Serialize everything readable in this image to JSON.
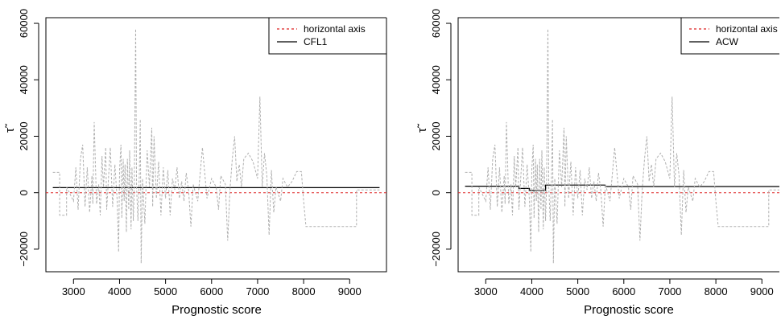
{
  "chart_data": [
    {
      "type": "line",
      "xlabel": "Prognostic score",
      "ylabel": "τ̃",
      "xlim": [
        2400,
        9800
      ],
      "ylim": [
        -28000,
        62000
      ],
      "x_ticks": [
        3000,
        4000,
        5000,
        6000,
        7000,
        8000,
        9000
      ],
      "y_ticks": [
        -20000,
        0,
        20000,
        40000,
        60000
      ],
      "legend": {
        "position": "top-right",
        "entries": [
          "horizontal axis",
          "CFL1"
        ]
      },
      "series": [
        {
          "name": "horizontal axis",
          "style": "dashed",
          "color": "#dd2222",
          "points": [
            [
              2400,
              0
            ],
            [
              9800,
              0
            ]
          ]
        },
        {
          "name": "CFL1",
          "style": "solid",
          "color": "#000000",
          "points": [
            [
              2550,
              1800
            ],
            [
              9650,
              1800
            ]
          ]
        },
        {
          "style": "dashed",
          "color": "#b0b0b0",
          "points": [
            [
              2550,
              7200
            ],
            [
              2700,
              7200
            ],
            [
              2700,
              -8000
            ],
            [
              2850,
              -8000
            ],
            [
              2850,
              2000
            ],
            [
              3000,
              -3000
            ],
            [
              3050,
              9000
            ],
            [
              3100,
              -6000
            ],
            [
              3150,
              12000
            ],
            [
              3200,
              17000
            ],
            [
              3250,
              -5000
            ],
            [
              3300,
              9000
            ],
            [
              3350,
              -7000
            ],
            [
              3400,
              6000
            ],
            [
              3420,
              -4000
            ],
            [
              3450,
              25000
            ],
            [
              3500,
              -4000
            ],
            [
              3550,
              3000
            ],
            [
              3580,
              -8000
            ],
            [
              3620,
              13000
            ],
            [
              3650,
              2000
            ],
            [
              3700,
              16000
            ],
            [
              3720,
              -6000
            ],
            [
              3760,
              5000
            ],
            [
              3800,
              16000
            ],
            [
              3850,
              -5000
            ],
            [
              3900,
              10000
            ],
            [
              3950,
              -3000
            ],
            [
              3980,
              -21000
            ],
            [
              4000,
              8000
            ],
            [
              4030,
              17000
            ],
            [
              4050,
              -9000
            ],
            [
              4080,
              12000
            ],
            [
              4100,
              -3000
            ],
            [
              4120,
              10000
            ],
            [
              4150,
              -14000
            ],
            [
              4170,
              12000
            ],
            [
              4200,
              -6000
            ],
            [
              4220,
              15000
            ],
            [
              4250,
              -13000
            ],
            [
              4270,
              9000
            ],
            [
              4300,
              -10000
            ],
            [
              4320,
              2000
            ],
            [
              4350,
              58000
            ],
            [
              4370,
              2000
            ],
            [
              4400,
              -10000
            ],
            [
              4430,
              6000
            ],
            [
              4450,
              26000
            ],
            [
              4470,
              -25000
            ],
            [
              4500,
              5000
            ],
            [
              4550,
              -11000
            ],
            [
              4600,
              15000
            ],
            [
              4650,
              2000
            ],
            [
              4700,
              23000
            ],
            [
              4720,
              -5000
            ],
            [
              4750,
              20000
            ],
            [
              4800,
              -2000
            ],
            [
              4850,
              11000
            ],
            [
              4900,
              -8000
            ],
            [
              4950,
              9000
            ],
            [
              5000,
              -2000
            ],
            [
              5050,
              8000
            ],
            [
              5100,
              -8000
            ],
            [
              5150,
              5000
            ],
            [
              5200,
              1000
            ],
            [
              5250,
              9000
            ],
            [
              5300,
              -2000
            ],
            [
              5350,
              4000
            ],
            [
              5400,
              -3000
            ],
            [
              5450,
              7000
            ],
            [
              5500,
              1000
            ],
            [
              5550,
              -12000
            ],
            [
              5600,
              3000
            ],
            [
              5700,
              -3000
            ],
            [
              5800,
              16000
            ],
            [
              5900,
              -2000
            ],
            [
              6000,
              5000
            ],
            [
              6100,
              2000
            ],
            [
              6150,
              -6000
            ],
            [
              6200,
              6000
            ],
            [
              6300,
              3000
            ],
            [
              6350,
              -17000
            ],
            [
              6400,
              1000
            ],
            [
              6450,
              12000
            ],
            [
              6500,
              20000
            ],
            [
              6550,
              4000
            ],
            [
              6600,
              10000
            ],
            [
              6650,
              2000
            ],
            [
              6700,
              12000
            ],
            [
              6800,
              14000
            ],
            [
              6900,
              11000
            ],
            [
              7000,
              5000
            ],
            [
              7050,
              34000
            ],
            [
              7100,
              2000
            ],
            [
              7150,
              14000
            ],
            [
              7200,
              6000
            ],
            [
              7250,
              -15000
            ],
            [
              7300,
              8000
            ],
            [
              7350,
              -7000
            ],
            [
              7400,
              2000
            ],
            [
              7500,
              -3000
            ],
            [
              7550,
              5000
            ],
            [
              7650,
              2000
            ],
            [
              7750,
              4000
            ],
            [
              7850,
              7500
            ],
            [
              7950,
              7500
            ],
            [
              8000,
              -3000
            ],
            [
              8050,
              -12000
            ],
            [
              9150,
              -12000
            ],
            [
              9150,
              1000
            ],
            [
              9650,
              1000
            ]
          ]
        }
      ]
    },
    {
      "type": "line",
      "xlabel": "Prognostic score",
      "ylabel": "τ̃",
      "xlim": [
        2400,
        9800
      ],
      "ylim": [
        -28000,
        62000
      ],
      "x_ticks": [
        3000,
        4000,
        5000,
        6000,
        7000,
        8000,
        9000
      ],
      "y_ticks": [
        -20000,
        0,
        20000,
        40000,
        60000
      ],
      "legend": {
        "position": "top-right",
        "entries": [
          "horizontal axis",
          "ACW"
        ]
      },
      "series": [
        {
          "name": "horizontal axis",
          "style": "dashed",
          "color": "#dd2222",
          "points": [
            [
              2400,
              0
            ],
            [
              9800,
              0
            ]
          ]
        },
        {
          "name": "ACW",
          "style": "solid",
          "color": "#000000",
          "points": [
            [
              2550,
              2300
            ],
            [
              3720,
              2300
            ],
            [
              3720,
              1500
            ],
            [
              3950,
              1500
            ],
            [
              3950,
              800
            ],
            [
              4300,
              800
            ],
            [
              4300,
              2700
            ],
            [
              5600,
              2700
            ],
            [
              5600,
              2200
            ],
            [
              9650,
              2200
            ]
          ]
        },
        {
          "style": "dashed",
          "color": "#b0b0b0",
          "points": [
            [
              2550,
              7200
            ],
            [
              2700,
              7200
            ],
            [
              2700,
              -8000
            ],
            [
              2850,
              -8000
            ],
            [
              2850,
              2000
            ],
            [
              3000,
              -3000
            ],
            [
              3050,
              9000
            ],
            [
              3100,
              -6000
            ],
            [
              3150,
              12000
            ],
            [
              3200,
              17000
            ],
            [
              3250,
              -5000
            ],
            [
              3300,
              9000
            ],
            [
              3350,
              -7000
            ],
            [
              3400,
              6000
            ],
            [
              3420,
              -4000
            ],
            [
              3450,
              25000
            ],
            [
              3500,
              -4000
            ],
            [
              3550,
              3000
            ],
            [
              3580,
              -8000
            ],
            [
              3620,
              13000
            ],
            [
              3650,
              2000
            ],
            [
              3700,
              16000
            ],
            [
              3720,
              -6000
            ],
            [
              3760,
              5000
            ],
            [
              3800,
              16000
            ],
            [
              3850,
              -5000
            ],
            [
              3900,
              10000
            ],
            [
              3950,
              -3000
            ],
            [
              3980,
              -21000
            ],
            [
              4000,
              8000
            ],
            [
              4030,
              17000
            ],
            [
              4050,
              -9000
            ],
            [
              4080,
              12000
            ],
            [
              4100,
              -3000
            ],
            [
              4120,
              10000
            ],
            [
              4150,
              -14000
            ],
            [
              4170,
              12000
            ],
            [
              4200,
              -6000
            ],
            [
              4220,
              15000
            ],
            [
              4250,
              -13000
            ],
            [
              4270,
              9000
            ],
            [
              4300,
              -10000
            ],
            [
              4320,
              2000
            ],
            [
              4350,
              58000
            ],
            [
              4370,
              2000
            ],
            [
              4400,
              -10000
            ],
            [
              4430,
              6000
            ],
            [
              4450,
              26000
            ],
            [
              4470,
              -25000
            ],
            [
              4500,
              5000
            ],
            [
              4550,
              -11000
            ],
            [
              4600,
              15000
            ],
            [
              4650,
              2000
            ],
            [
              4700,
              23000
            ],
            [
              4720,
              -5000
            ],
            [
              4750,
              20000
            ],
            [
              4800,
              -2000
            ],
            [
              4850,
              11000
            ],
            [
              4900,
              -8000
            ],
            [
              4950,
              9000
            ],
            [
              5000,
              -2000
            ],
            [
              5050,
              8000
            ],
            [
              5100,
              -8000
            ],
            [
              5150,
              5000
            ],
            [
              5200,
              1000
            ],
            [
              5250,
              9000
            ],
            [
              5300,
              -2000
            ],
            [
              5350,
              4000
            ],
            [
              5400,
              -3000
            ],
            [
              5450,
              7000
            ],
            [
              5500,
              1000
            ],
            [
              5550,
              -12000
            ],
            [
              5600,
              3000
            ],
            [
              5700,
              -3000
            ],
            [
              5800,
              16000
            ],
            [
              5900,
              -2000
            ],
            [
              6000,
              5000
            ],
            [
              6100,
              2000
            ],
            [
              6150,
              -6000
            ],
            [
              6200,
              6000
            ],
            [
              6300,
              3000
            ],
            [
              6350,
              -17000
            ],
            [
              6400,
              1000
            ],
            [
              6450,
              12000
            ],
            [
              6500,
              20000
            ],
            [
              6550,
              4000
            ],
            [
              6600,
              10000
            ],
            [
              6650,
              2000
            ],
            [
              6700,
              12000
            ],
            [
              6800,
              14000
            ],
            [
              6900,
              11000
            ],
            [
              7000,
              5000
            ],
            [
              7050,
              34000
            ],
            [
              7100,
              2000
            ],
            [
              7150,
              14000
            ],
            [
              7200,
              6000
            ],
            [
              7250,
              -15000
            ],
            [
              7300,
              8000
            ],
            [
              7350,
              -7000
            ],
            [
              7400,
              2000
            ],
            [
              7500,
              -3000
            ],
            [
              7550,
              5000
            ],
            [
              7650,
              2000
            ],
            [
              7750,
              4000
            ],
            [
              7850,
              7500
            ],
            [
              7950,
              7500
            ],
            [
              8000,
              -3000
            ],
            [
              8050,
              -12000
            ],
            [
              9150,
              -12000
            ],
            [
              9150,
              1000
            ],
            [
              9650,
              1000
            ]
          ]
        }
      ]
    }
  ]
}
